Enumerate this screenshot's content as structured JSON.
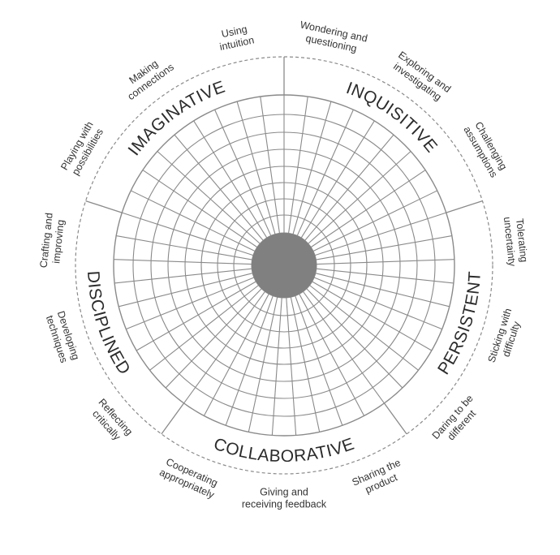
{
  "title": "",
  "colors": {
    "line": "#8a8a8a",
    "hub": "#808080",
    "text": "#333333",
    "background": "#ffffff"
  },
  "domains": [
    {
      "name": "INQUISITIVE",
      "habits": [
        "Wondering and\nquestioning",
        "Exploring and\ninvestigating",
        "Challenging\nassumptions"
      ]
    },
    {
      "name": "PERSISTENT",
      "habits": [
        "Tolerating\nuncertainty",
        "Sticking with\ndifficulty",
        "Daring to be\ndifferent"
      ]
    },
    {
      "name": "COLLABORATIVE",
      "habits": [
        "Sharing the\nproduct",
        "Giving and\nreceiving feedback",
        "Cooperating\nappropriately"
      ]
    },
    {
      "name": "DISCIPLINED",
      "habits": [
        "Reflecting\ncritically",
        "Developing\ntechniques",
        "Crafting and\nimproving"
      ]
    },
    {
      "name": "IMAGINATIVE",
      "habits": [
        "Playing with\npossibilities",
        "Making\nconnections",
        "Using\nintuition"
      ]
    }
  ]
}
